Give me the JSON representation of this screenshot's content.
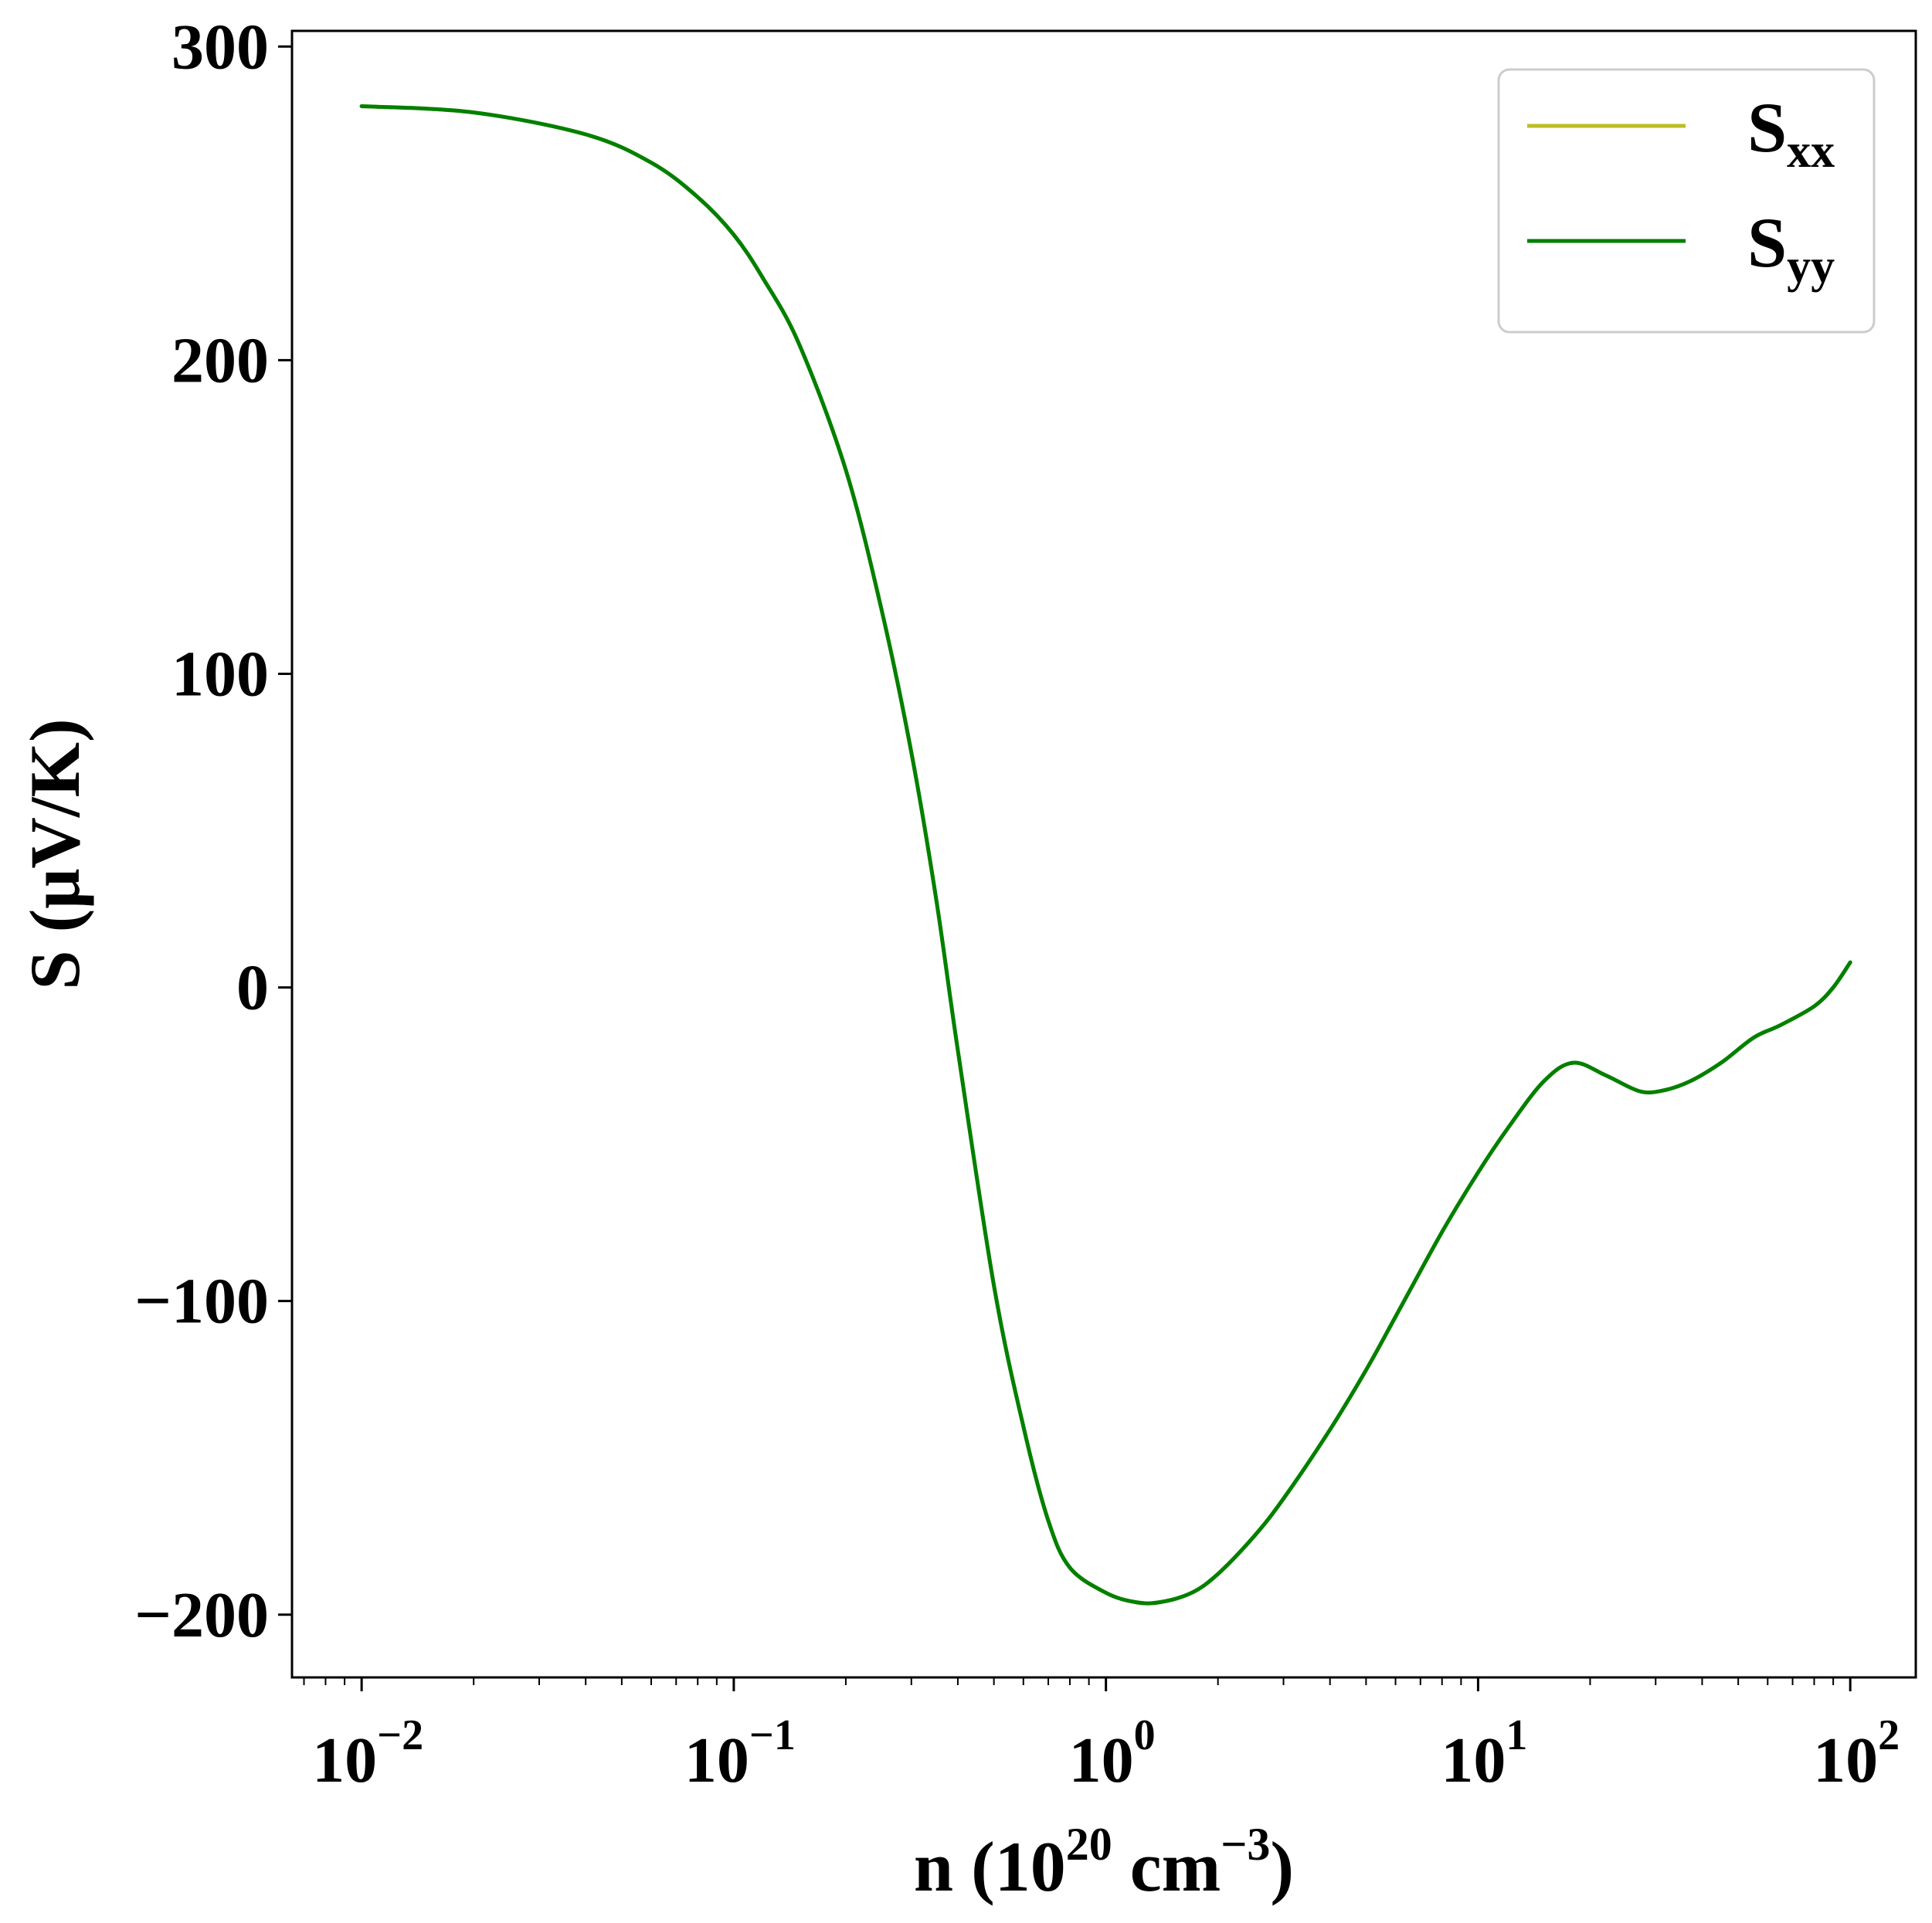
{
  "chart_data": {
    "type": "line",
    "xscale": "log",
    "xlim": [
      0.0065,
      150
    ],
    "ylim": [
      -220,
      305
    ],
    "xlabel": {
      "base": "n (10",
      "exponent": "20",
      "middle": " cm",
      "exponent2": "−3",
      "end": ")"
    },
    "ylabel": "S (μV/K)",
    "x_ticks": [
      {
        "value": 0.01,
        "base": "10",
        "exponent": "−2"
      },
      {
        "value": 0.1,
        "base": "10",
        "exponent": "−1"
      },
      {
        "value": 1,
        "base": "10",
        "exponent": "0"
      },
      {
        "value": 10,
        "base": "10",
        "exponent": "1"
      },
      {
        "value": 100,
        "base": "10",
        "exponent": "2"
      }
    ],
    "y_ticks": [
      {
        "value": 300,
        "label": "300"
      },
      {
        "value": 200,
        "label": "200"
      },
      {
        "value": 100,
        "label": "100"
      },
      {
        "value": 0,
        "label": "0"
      },
      {
        "value": -100,
        "label": "−100"
      },
      {
        "value": -200,
        "label": "−200"
      }
    ],
    "legend": {
      "position": "top-right"
    },
    "series": [
      {
        "name_main": "S",
        "name_sub": "xx",
        "color": "#bcbd22",
        "x": [
          0.01,
          0.02,
          0.04,
          0.06,
          0.08,
          0.1,
          0.12,
          0.15,
          0.2,
          0.25,
          0.3,
          0.35,
          0.4,
          0.5,
          0.6,
          0.7,
          0.8,
          1.0,
          1.2,
          1.4,
          1.7,
          2.0,
          2.5,
          3.0,
          4.0,
          5.0,
          6.0,
          8.0,
          10,
          12,
          15,
          18,
          22,
          27,
          31,
          37,
          45,
          55,
          65,
          80,
          90,
          100
        ],
        "y": [
          281,
          279,
          272,
          263,
          252,
          240,
          226,
          205,
          165,
          120,
          75,
          28,
          -20,
          -95,
          -140,
          -170,
          -185,
          -193,
          -196,
          -196,
          -193,
          -187,
          -175,
          -163,
          -141,
          -122,
          -105,
          -78,
          -59,
          -45,
          -30,
          -24,
          -28,
          -33,
          -33,
          -30,
          -24,
          -16,
          -12,
          -6,
          0,
          8
        ]
      },
      {
        "name_main": "S",
        "name_sub": "yy",
        "color": "#008000",
        "x": [
          0.01,
          0.02,
          0.04,
          0.06,
          0.08,
          0.1,
          0.12,
          0.15,
          0.2,
          0.25,
          0.3,
          0.35,
          0.4,
          0.5,
          0.6,
          0.7,
          0.8,
          1.0,
          1.2,
          1.4,
          1.7,
          2.0,
          2.5,
          3.0,
          4.0,
          5.0,
          6.0,
          8.0,
          10,
          12,
          15,
          18,
          22,
          27,
          31,
          37,
          45,
          55,
          65,
          80,
          90,
          100
        ],
        "y": [
          281,
          279,
          272,
          263,
          252,
          240,
          226,
          205,
          165,
          120,
          75,
          28,
          -20,
          -95,
          -140,
          -170,
          -185,
          -193,
          -196,
          -196,
          -193,
          -187,
          -175,
          -163,
          -141,
          -122,
          -105,
          -78,
          -59,
          -45,
          -30,
          -24,
          -28,
          -33,
          -33,
          -30,
          -24,
          -16,
          -12,
          -6,
          0,
          8
        ]
      }
    ]
  }
}
